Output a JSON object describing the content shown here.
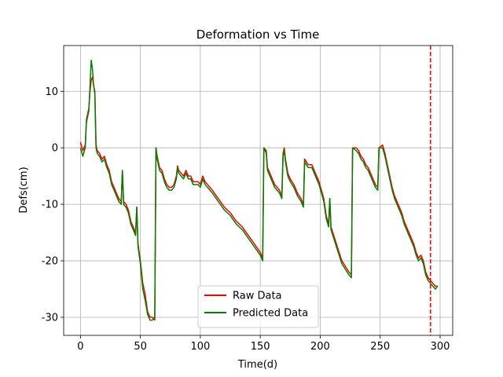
{
  "chart_data": {
    "type": "line",
    "title": "Deformation vs Time",
    "xlabel": "Time(d)",
    "ylabel": "Defs(cm)",
    "x": [
      0,
      2,
      4,
      5,
      7,
      8,
      9,
      10,
      11,
      12,
      13,
      14,
      16,
      18,
      20,
      22,
      24,
      26,
      28,
      30,
      32,
      34,
      35,
      36,
      38,
      40,
      42,
      44,
      46,
      47,
      48,
      50,
      51,
      52,
      54,
      56,
      58,
      60,
      62,
      63,
      64,
      66,
      68,
      70,
      72,
      74,
      76,
      78,
      80,
      81,
      82,
      84,
      86,
      88,
      90,
      92,
      94,
      96,
      98,
      100,
      102,
      104,
      106,
      110,
      115,
      120,
      125,
      130,
      135,
      140,
      145,
      150,
      152,
      153,
      155,
      156,
      158,
      160,
      162,
      164,
      166,
      168,
      169,
      170,
      171,
      173,
      175,
      178,
      181,
      184,
      186,
      187,
      190,
      193,
      196,
      199,
      201,
      203,
      205,
      207,
      208,
      209,
      212,
      215,
      218,
      221,
      224,
      226,
      227,
      230,
      232,
      234,
      236,
      238,
      240,
      242,
      244,
      246,
      248,
      249,
      252,
      254,
      256,
      258,
      260,
      262,
      264,
      266,
      268,
      270,
      272,
      274,
      276,
      278,
      280,
      282,
      284,
      286,
      288,
      290,
      292,
      294,
      296,
      298
    ],
    "series": [
      {
        "name": "Raw Data",
        "color": "#ff0000",
        "values": [
          1,
          -0.5,
          0.5,
          5,
          7,
          10,
          12,
          12.5,
          11,
          10,
          0.5,
          -0.5,
          -1,
          -2,
          -1.5,
          -3,
          -4,
          -6,
          -7,
          -8,
          -9,
          -9.5,
          -4,
          -9.5,
          -10,
          -11,
          -13,
          -14,
          -15,
          -10.5,
          -17,
          -20,
          -22,
          -24,
          -26,
          -29,
          -30,
          -30,
          -30.5,
          0,
          -1.5,
          -3.5,
          -4,
          -5.5,
          -6.5,
          -7,
          -7,
          -6.5,
          -5,
          -3.2,
          -4,
          -4.5,
          -5,
          -4,
          -5,
          -5,
          -6,
          -6,
          -6,
          -6.5,
          -5,
          -6,
          -6.5,
          -7.5,
          -9,
          -10.5,
          -11.5,
          -13,
          -14,
          -15.5,
          -17,
          -18.5,
          -19.5,
          0,
          -0.5,
          -3.5,
          -4.5,
          -5.5,
          -6.5,
          -7,
          -7.5,
          -8.5,
          -1,
          0,
          -2,
          -4.5,
          -5.5,
          -6.5,
          -8,
          -9,
          -10,
          -2,
          -3,
          -3,
          -4.5,
          -6,
          -7.5,
          -9,
          -12,
          -13.5,
          -9,
          -14,
          -16,
          -18,
          -20,
          -21,
          -22,
          -22.5,
          0,
          0,
          -0.5,
          -1.5,
          -2,
          -3,
          -3.5,
          -4.5,
          -5.5,
          -6.5,
          -7,
          0,
          0.5,
          -1,
          -3,
          -5,
          -7,
          -8.5,
          -9.5,
          -10.5,
          -11.5,
          -13,
          -14,
          -15,
          -16,
          -17,
          -18.5,
          -19.5,
          -19,
          -20,
          -22,
          -23,
          -23.5,
          -24,
          -24.5,
          -24.5
        ]
      },
      {
        "name": "Predicted Data",
        "color": "#008000",
        "values": [
          0,
          -1.5,
          0,
          4.5,
          6.5,
          11,
          15.5,
          14,
          11,
          9.5,
          0,
          -1,
          -1.5,
          -2.5,
          -2,
          -3.5,
          -4.5,
          -6.5,
          -7.5,
          -8.5,
          -9.5,
          -10,
          -4,
          -10,
          -10.5,
          -11.5,
          -13.5,
          -14.5,
          -15.5,
          -10.5,
          -17.5,
          -20.5,
          -23,
          -25,
          -27,
          -29.5,
          -30.5,
          -30.5,
          -30,
          0,
          -2,
          -4,
          -4.5,
          -6,
          -7,
          -7.5,
          -7.5,
          -7,
          -5.5,
          -3.5,
          -4.5,
          -5,
          -5.5,
          -4.5,
          -5.5,
          -5.5,
          -6.5,
          -6.5,
          -6.5,
          -7,
          -5.5,
          -6.5,
          -7,
          -8,
          -9.5,
          -11,
          -12,
          -13.5,
          -14.5,
          -16,
          -17.5,
          -19,
          -20,
          0,
          -1,
          -4,
          -5,
          -6,
          -7,
          -7.5,
          -8,
          -9,
          -1.5,
          -0.5,
          -2.5,
          -5,
          -6,
          -7,
          -8.5,
          -9.5,
          -10.5,
          -2.5,
          -3.5,
          -3.5,
          -5,
          -6.5,
          -8,
          -9.5,
          -12.5,
          -14,
          -9,
          -14.5,
          -16.5,
          -18.5,
          -20.5,
          -21.5,
          -22.5,
          -23,
          0,
          -0.5,
          -1,
          -2,
          -2.5,
          -3.5,
          -4,
          -5,
          -6,
          -7,
          -7.5,
          0,
          0,
          -1.5,
          -3.5,
          -5.5,
          -7.5,
          -9,
          -10,
          -11,
          -12,
          -13.5,
          -14.5,
          -15.5,
          -16.5,
          -17.5,
          -19,
          -20,
          -19.5,
          -20.5,
          -22.5,
          -23.5,
          -24,
          -24.5,
          -25,
          -24.5
        ]
      }
    ],
    "vline": {
      "x": 292,
      "color": "#ff0000",
      "style": "dashed"
    },
    "xlim": [
      -14,
      310.5
    ],
    "ylim": [
      -33.2,
      18.1
    ],
    "xticks": [
      0,
      50,
      100,
      150,
      200,
      250,
      300
    ],
    "yticks": [
      -30,
      -20,
      -10,
      0,
      10
    ],
    "grid": true,
    "legend": "lower center"
  }
}
